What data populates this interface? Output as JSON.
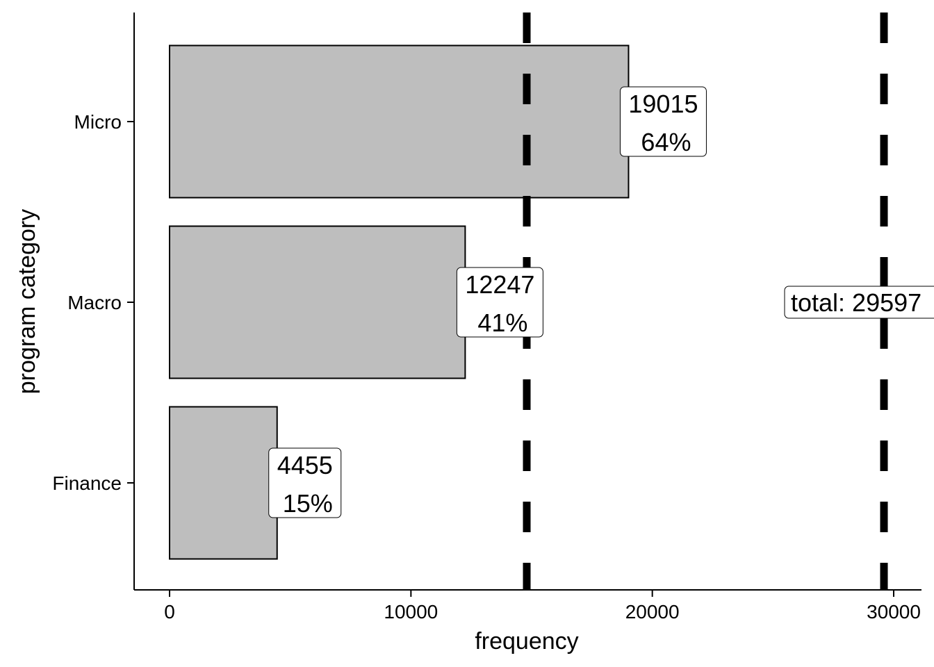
{
  "chart_data": {
    "type": "bar",
    "orientation": "horizontal",
    "categories": [
      "Finance",
      "Macro",
      "Micro"
    ],
    "values": [
      4455,
      12247,
      19015
    ],
    "percent_labels": [
      "15%",
      "41%",
      "64%"
    ],
    "reference_lines": [
      {
        "value": 14798.5,
        "style": "dashed",
        "label": ""
      },
      {
        "value": 29597,
        "style": "dashed",
        "label": "total: 29597"
      }
    ],
    "xlabel": "frequency",
    "ylabel": "program category",
    "xlim": [
      -1475,
      31000
    ],
    "xticks": [
      0,
      10000,
      20000,
      30000
    ],
    "xtick_labels": [
      "0",
      "10000",
      "20000",
      "30000"
    ],
    "grid": false,
    "legend": "none",
    "colors": {
      "bar_fill": "#bebebe",
      "bar_stroke": "#000000",
      "reference_line": "#000000",
      "label_bg": "#ffffff"
    }
  }
}
